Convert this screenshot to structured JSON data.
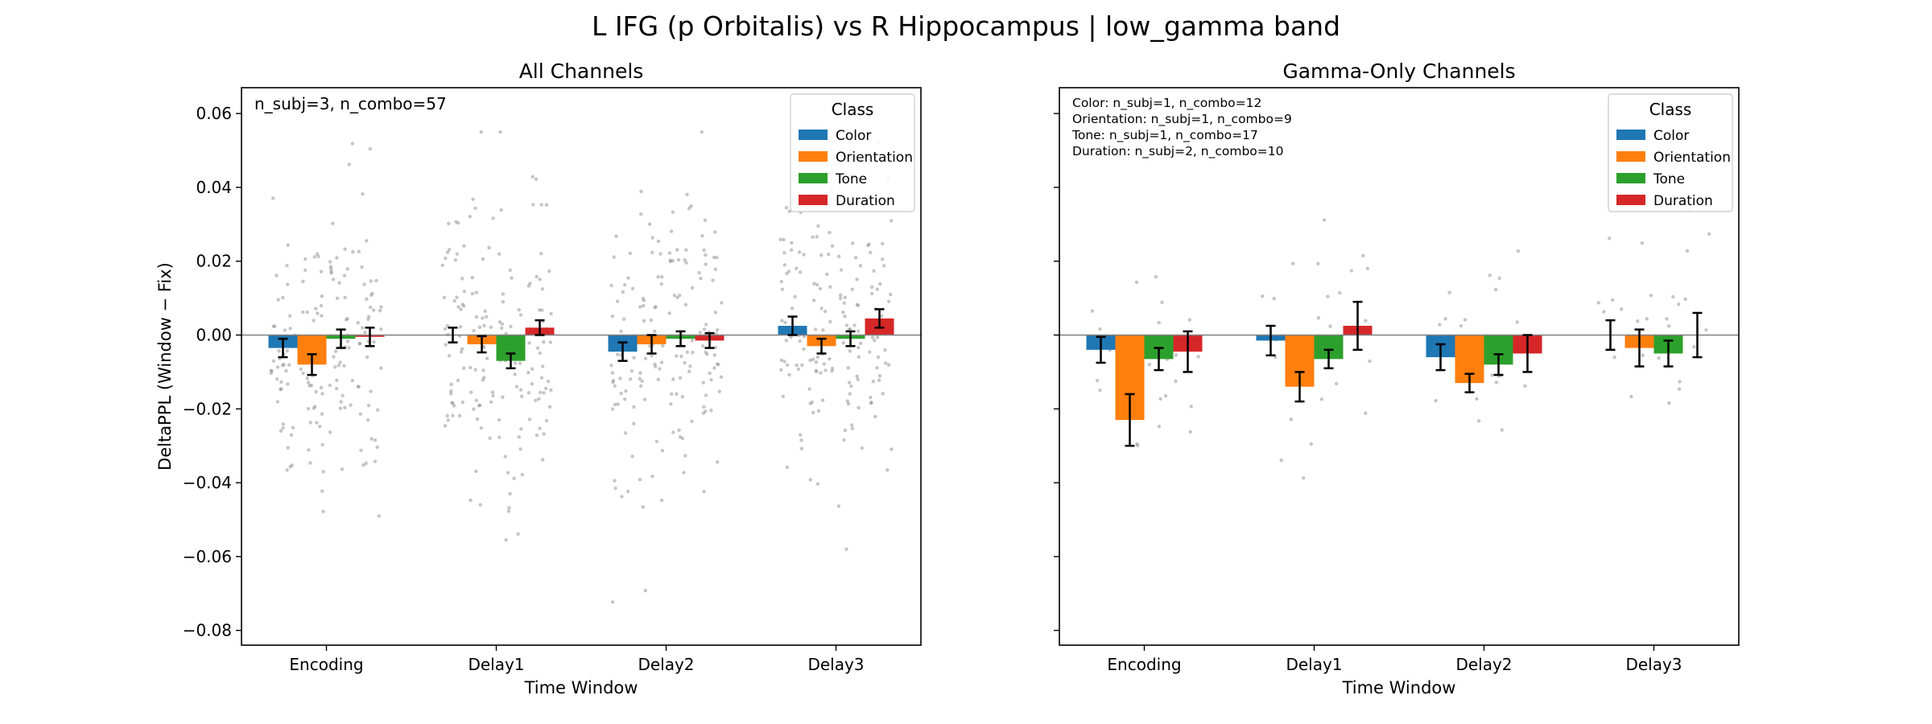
{
  "figure": {
    "suptitle": "L IFG (p Orbitalis) vs R Hippocampus  |  low_gamma band",
    "colors": {
      "Color": "#1f77b4",
      "Orientation": "#ff7f0e",
      "Tone": "#2ca02c",
      "Duration": "#d62728"
    }
  },
  "chart_data": [
    {
      "type": "bar",
      "title": "All Channels",
      "xlabel": "Time Window",
      "ylabel": "DeltaPPL (Window − Fix)",
      "ylim": [
        -0.084,
        0.067
      ],
      "yticks": [
        0.06,
        0.04,
        0.02,
        0.0,
        -0.02,
        -0.04,
        -0.06,
        -0.08
      ],
      "ytick_labels": [
        "0.06",
        "0.04",
        "0.02",
        "0.00",
        "−0.02",
        "−0.04",
        "−0.06",
        "−0.08"
      ],
      "categories": [
        "Encoding",
        "Delay1",
        "Delay2",
        "Delay3"
      ],
      "legend_title": "Class",
      "legend_position": "top-right",
      "annotations": [
        "n_subj=3, n_combo=57"
      ],
      "series": [
        {
          "name": "Color",
          "values": [
            -0.0035,
            0.0,
            -0.0045,
            0.0025
          ],
          "errors": [
            0.0025,
            0.002,
            0.0025,
            0.0025
          ]
        },
        {
          "name": "Orientation",
          "values": [
            -0.008,
            -0.0025,
            -0.0025,
            -0.003
          ],
          "errors": [
            0.0028,
            0.0022,
            0.0025,
            0.002
          ]
        },
        {
          "name": "Tone",
          "values": [
            -0.001,
            -0.007,
            -0.001,
            -0.001
          ],
          "errors": [
            0.0025,
            0.002,
            0.002,
            0.002
          ]
        },
        {
          "name": "Duration",
          "values": [
            -0.0005,
            0.002,
            -0.0015,
            0.0045
          ],
          "errors": [
            0.0025,
            0.002,
            0.002,
            0.0025
          ]
        }
      ]
    },
    {
      "type": "bar",
      "title": "Gamma-Only Channels",
      "xlabel": "Time Window",
      "ylabel": "",
      "ylim": [
        -0.084,
        0.067
      ],
      "yticks": [
        0.06,
        0.04,
        0.02,
        0.0,
        -0.02,
        -0.04,
        -0.06,
        -0.08
      ],
      "categories": [
        "Encoding",
        "Delay1",
        "Delay2",
        "Delay3"
      ],
      "legend_title": "Class",
      "legend_position": "top-right",
      "annotations": [
        "Color: n_subj=1, n_combo=12",
        "Orientation: n_subj=1, n_combo=9",
        "Tone: n_subj=1, n_combo=17",
        "Duration: n_subj=2, n_combo=10"
      ],
      "series": [
        {
          "name": "Color",
          "values": [
            -0.004,
            -0.0015,
            -0.006,
            0.0
          ],
          "errors": [
            0.0035,
            0.004,
            0.0035,
            0.004
          ]
        },
        {
          "name": "Orientation",
          "values": [
            -0.023,
            -0.014,
            -0.013,
            -0.0035
          ],
          "errors": [
            0.007,
            0.004,
            0.0025,
            0.005
          ]
        },
        {
          "name": "Tone",
          "values": [
            -0.0065,
            -0.0065,
            -0.008,
            -0.005
          ],
          "errors": [
            0.003,
            0.0025,
            0.0028,
            0.0035
          ]
        },
        {
          "name": "Duration",
          "values": [
            -0.0045,
            0.0025,
            -0.005,
            0.0
          ],
          "errors": [
            0.0055,
            0.0065,
            0.005,
            0.006
          ]
        }
      ]
    }
  ]
}
